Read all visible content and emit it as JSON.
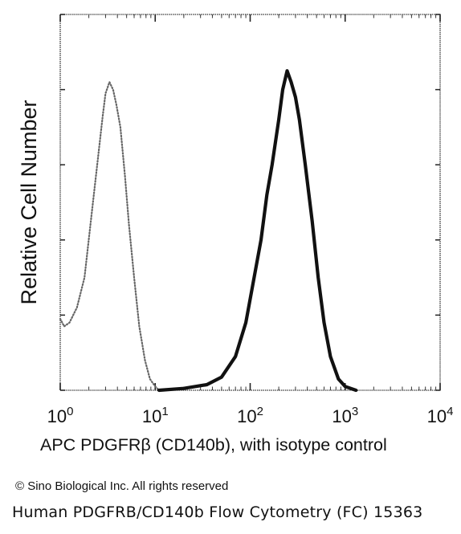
{
  "chart_data": {
    "type": "line",
    "title": "",
    "xlabel": "APC PDGFRβ (CD140b), with isotype control",
    "ylabel": "Relative Cell Number",
    "xscale": "log",
    "xlim": [
      1,
      10000
    ],
    "ylim": [
      0,
      100
    ],
    "x_ticks": [
      {
        "value": 1,
        "base": "10",
        "exp": "0"
      },
      {
        "value": 10,
        "base": "10",
        "exp": "1"
      },
      {
        "value": 100,
        "base": "10",
        "exp": "2"
      },
      {
        "value": 1000,
        "base": "10",
        "exp": "3"
      },
      {
        "value": 10000,
        "base": "10",
        "exp": "4"
      }
    ],
    "grid": false,
    "legend": "none",
    "series": [
      {
        "style": "dotted",
        "color": "#666666",
        "points": [
          [
            1,
            19
          ],
          [
            1.1,
            17
          ],
          [
            1.25,
            18
          ],
          [
            1.5,
            22
          ],
          [
            1.8,
            30
          ],
          [
            2.1,
            45
          ],
          [
            2.5,
            62
          ],
          [
            2.8,
            73
          ],
          [
            3.0,
            79
          ],
          [
            3.3,
            82
          ],
          [
            3.6,
            80
          ],
          [
            3.9,
            76
          ],
          [
            4.3,
            70
          ],
          [
            4.8,
            57
          ],
          [
            5.3,
            44
          ],
          [
            6.0,
            30
          ],
          [
            6.8,
            17
          ],
          [
            7.8,
            8
          ],
          [
            8.8,
            3
          ],
          [
            10,
            1
          ],
          [
            11,
            0
          ]
        ]
      },
      {
        "style": "solid",
        "color": "#111111",
        "points": [
          [
            11,
            0
          ],
          [
            20,
            0.5
          ],
          [
            35,
            1.5
          ],
          [
            50,
            3.5
          ],
          [
            70,
            9
          ],
          [
            90,
            18
          ],
          [
            110,
            30
          ],
          [
            130,
            40
          ],
          [
            150,
            52
          ],
          [
            170,
            60
          ],
          [
            200,
            72
          ],
          [
            220,
            80
          ],
          [
            245,
            85
          ],
          [
            270,
            82
          ],
          [
            300,
            78
          ],
          [
            330,
            72
          ],
          [
            380,
            60
          ],
          [
            450,
            45
          ],
          [
            520,
            30
          ],
          [
            600,
            18
          ],
          [
            700,
            9
          ],
          [
            850,
            3
          ],
          [
            1000,
            1
          ],
          [
            1300,
            0
          ]
        ]
      }
    ]
  },
  "copyright": "© Sino Biological Inc. All rights reserved",
  "caption": "Human PDGFRB/CD140b Flow Cytometry (FC) 15363"
}
